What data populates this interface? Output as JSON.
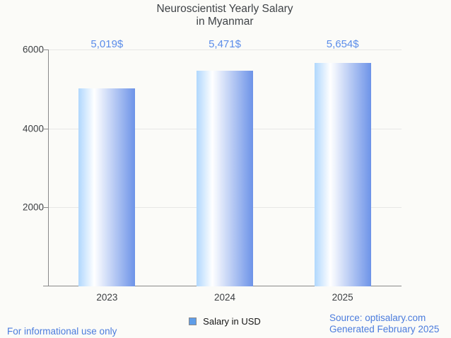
{
  "title": {
    "line1": "Neuroscientist Yearly Salary",
    "line2": "in Myanmar"
  },
  "chart_data": {
    "type": "bar",
    "title": "Neuroscientist Yearly Salary in Myanmar",
    "categories": [
      "2023",
      "2024",
      "2025"
    ],
    "series": [
      {
        "name": "Salary in USD",
        "values": [
          5019,
          5471,
          5654
        ]
      }
    ],
    "value_labels": [
      "5,019$",
      "5,471$",
      "5,654$"
    ],
    "ylabel": "",
    "xlabel": "",
    "ylim": [
      0,
      6000
    ],
    "yticks": [
      2000,
      4000,
      6000
    ],
    "ytick_labels": [
      "2000",
      "4000",
      "6000"
    ],
    "grid": true,
    "legend_position": "bottom",
    "bar_gradient": [
      "#b0d7fd",
      "#ffffff",
      "#6d93e8"
    ]
  },
  "legend": {
    "label": "Salary in USD",
    "marker_color": "#5f9de8"
  },
  "footer": {
    "left": "For informational use only",
    "source": "Source: optisalary.com",
    "generated": "Generated February 2025"
  },
  "colors": {
    "background": "#fbfbf8",
    "title_text": "#3f4347",
    "axis_text": "#3c3f42",
    "value_label_blue": "#5b8dea",
    "footer_blue": "#4b7cdd",
    "gridline": "#e7e7e6",
    "axis_line": "#8a8a8a",
    "legend_marker_border": "#8a8a8a"
  }
}
